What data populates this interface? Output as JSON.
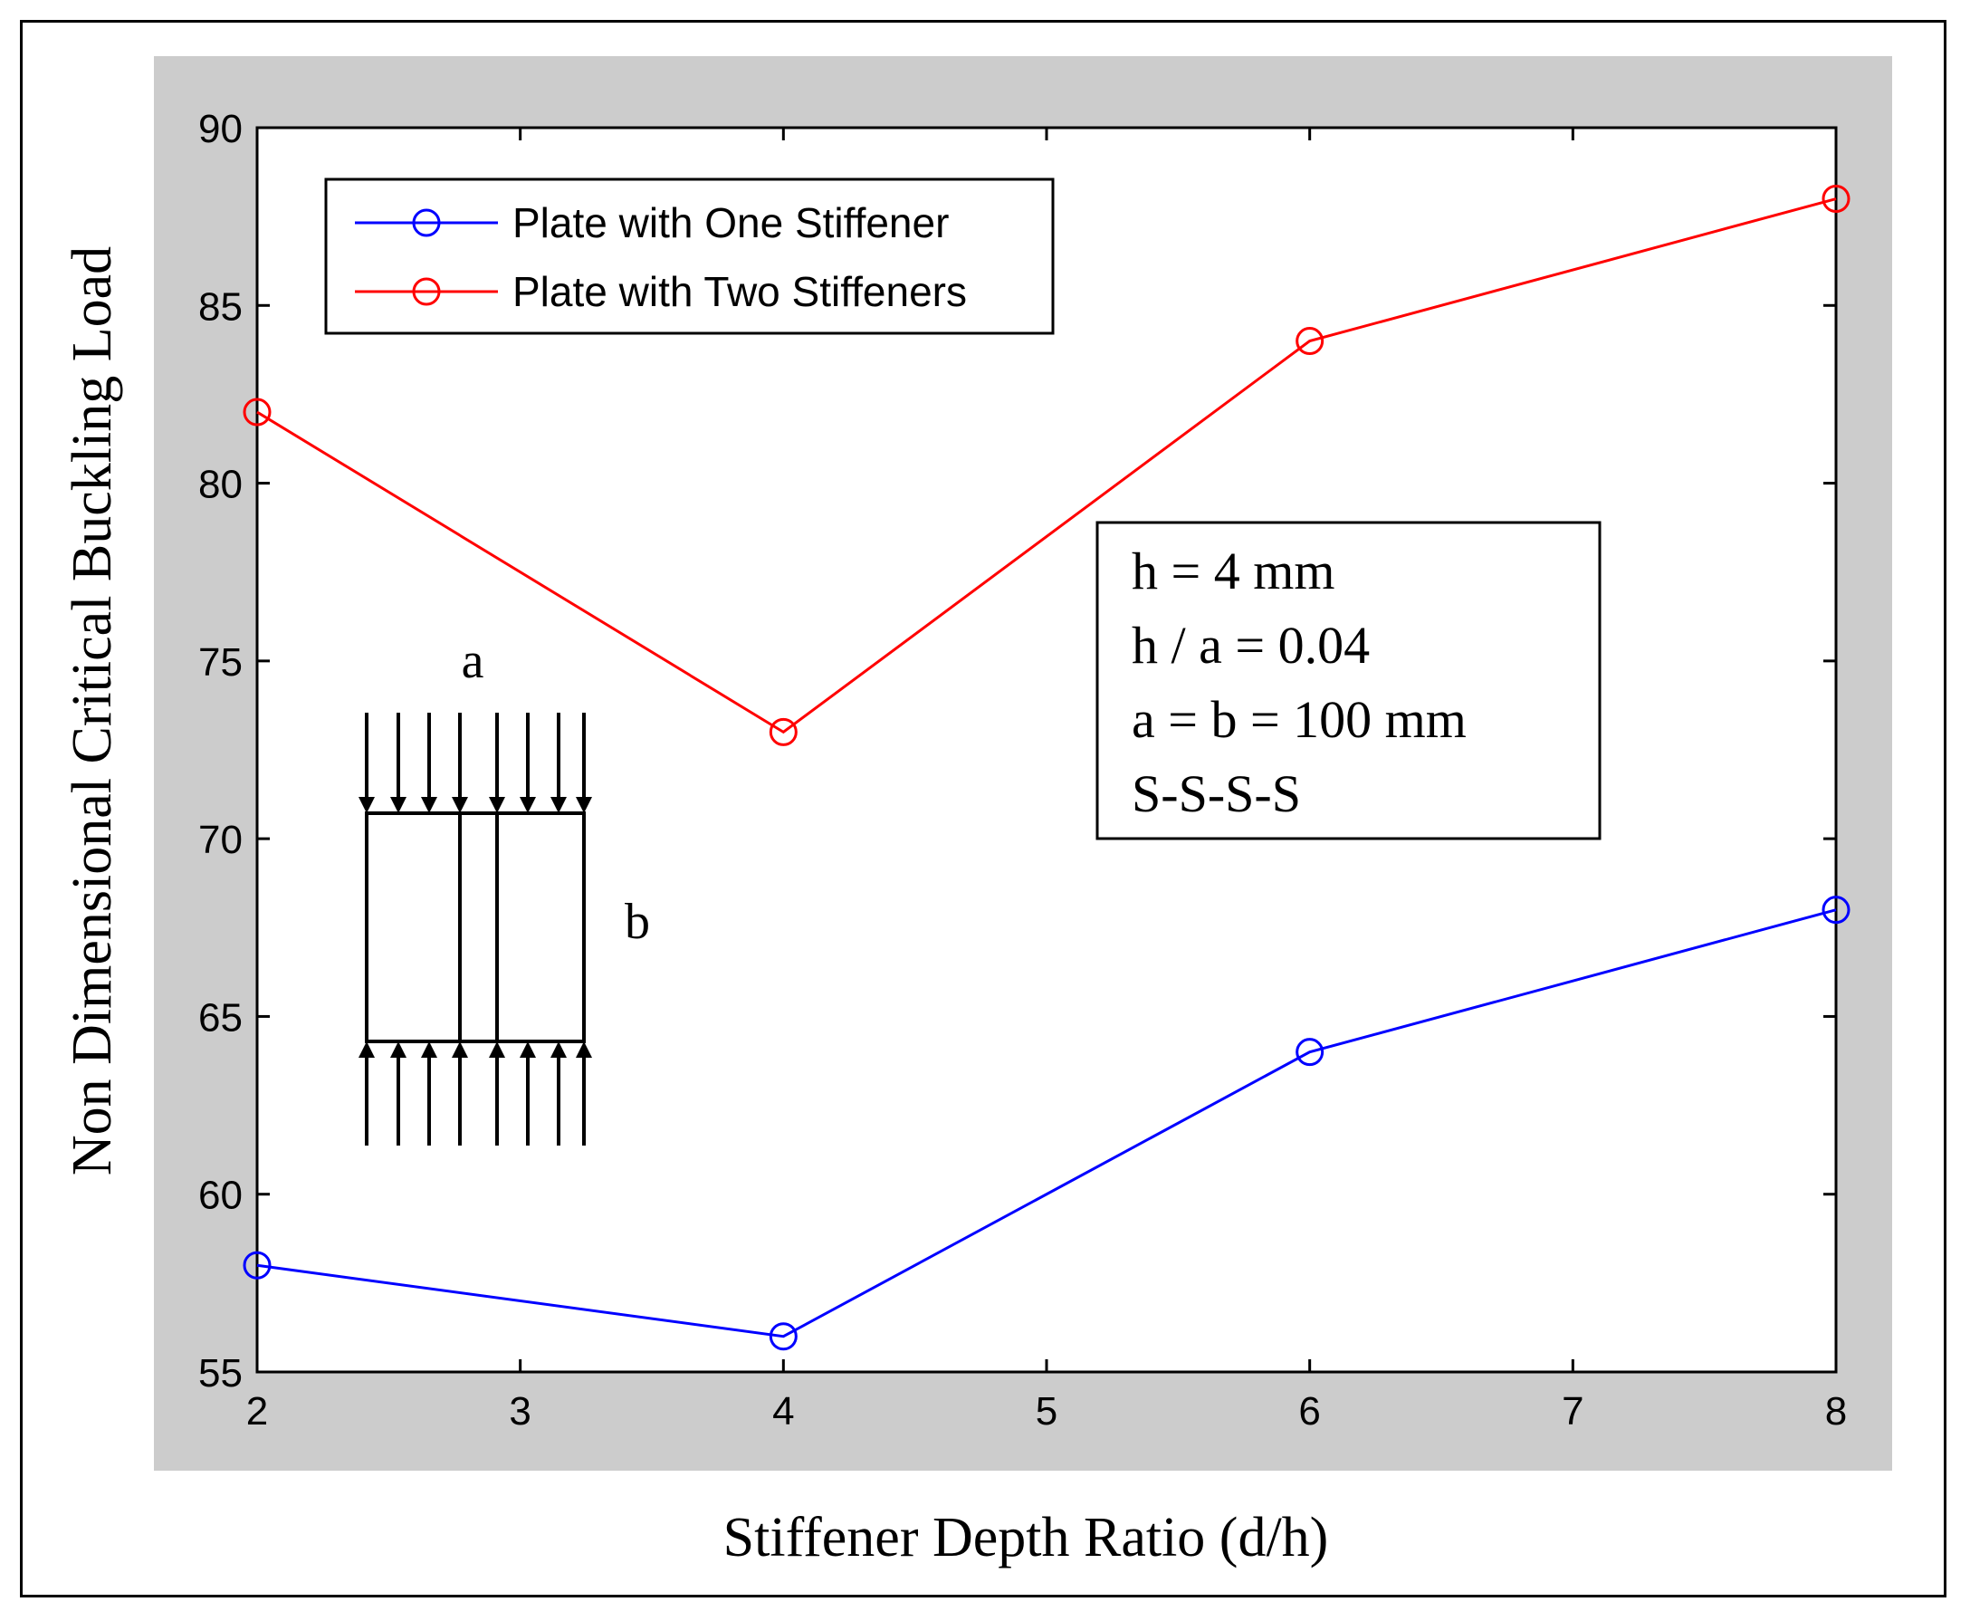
{
  "chart_data": {
    "type": "line",
    "xlabel": "Stiffener Depth Ratio (d/h)",
    "ylabel": "Non Dimensional Critical Buckling Load",
    "xlim": [
      2,
      8
    ],
    "ylim": [
      55,
      90
    ],
    "xticks": [
      2,
      3,
      4,
      5,
      6,
      7,
      8
    ],
    "yticks": [
      55,
      60,
      65,
      70,
      75,
      80,
      85,
      90
    ],
    "grid": false,
    "legend_position": "top-left",
    "series": [
      {
        "name": "Plate with One Stiffener",
        "color": "#0000ff",
        "marker": "circle",
        "x": [
          2,
          4,
          6,
          8
        ],
        "values": [
          58,
          56,
          64,
          68
        ]
      },
      {
        "name": "Plate with Two Stiffeners",
        "color": "#ff0000",
        "marker": "circle",
        "x": [
          2,
          4,
          6,
          8
        ],
        "values": [
          82,
          73,
          84,
          88
        ]
      }
    ],
    "annotation_box": [
      "h = 4 mm",
      "h / a = 0.04",
      "a = b = 100 mm",
      "S-S-S-S"
    ],
    "inset_diagram": {
      "width_label": "a",
      "height_label": "b"
    }
  }
}
